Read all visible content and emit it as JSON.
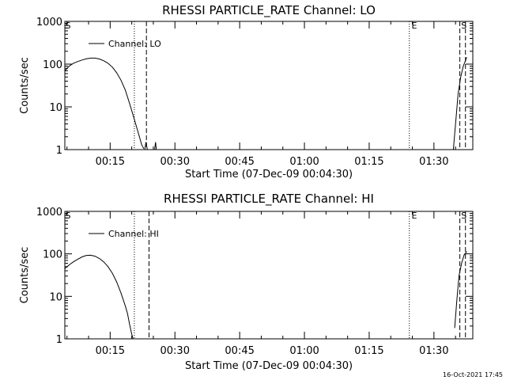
{
  "footer": {
    "timestamp": "16-Oct-2021 17:45"
  },
  "chart_data": [
    {
      "type": "line",
      "title": "RHESSI PARTICLE_RATE Channel: LO",
      "xlabel": "Start Time (07-Dec-09 00:04:30)",
      "ylabel": "Counts/sec",
      "y_scale": "log",
      "ylim": [
        1,
        1000
      ],
      "xlim_minutes": [
        4.5,
        99
      ],
      "y_ticks": [
        "1",
        "10",
        "100",
        "1000"
      ],
      "x_ticks": [
        {
          "at": 15,
          "label": "00:15"
        },
        {
          "at": 30,
          "label": "00:30"
        },
        {
          "at": 45,
          "label": "00:45"
        },
        {
          "at": 60,
          "label": "01:00"
        },
        {
          "at": 75,
          "label": "01:15"
        },
        {
          "at": 90,
          "label": "01:30"
        }
      ],
      "legend": {
        "position": "top-left",
        "entries": [
          "Channel: LO"
        ]
      },
      "markers": [
        {
          "at": 20.6,
          "style": "dotted",
          "label": ""
        },
        {
          "at": 23.4,
          "style": "dashed",
          "label": ""
        },
        {
          "at": 84.3,
          "style": "dotted",
          "label": ""
        },
        {
          "at": 96.0,
          "style": "dashed",
          "label": ""
        },
        {
          "at": 97.3,
          "style": "dashed",
          "label": ""
        }
      ],
      "edge_marks": [
        {
          "at": 4.6,
          "label": "S"
        },
        {
          "at": 84.8,
          "label": "E"
        },
        {
          "at": 96.3,
          "label": "S"
        }
      ],
      "series": [
        {
          "name": "Channel: LO",
          "segments": [
            [
              [
                4.5,
                70
              ],
              [
                5.5,
                90
              ],
              [
                6.5,
                105
              ],
              [
                7.5,
                115
              ],
              [
                8.5,
                125
              ],
              [
                9.5,
                133
              ],
              [
                10.5,
                138
              ],
              [
                11.5,
                138
              ],
              [
                12.5,
                132
              ],
              [
                13.5,
                120
              ],
              [
                14.5,
                105
              ],
              [
                15.5,
                85
              ],
              [
                16.5,
                63
              ],
              [
                17.5,
                42
              ],
              [
                18.5,
                25
              ],
              [
                19.5,
                12
              ],
              [
                20.5,
                5.5
              ],
              [
                21.5,
                2.5
              ],
              [
                22.3,
                1.3
              ],
              [
                22.8,
                1.05
              ]
            ],
            [
              [
                23.0,
                1.0
              ],
              [
                23.3,
                1.5
              ],
              [
                23.6,
                1.0
              ]
            ],
            [
              [
                25.3,
                1.0
              ],
              [
                25.5,
                1.5
              ],
              [
                25.7,
                1.0
              ]
            ],
            [
              [
                94.5,
                1.0
              ],
              [
                95.0,
                4
              ],
              [
                95.6,
                20
              ],
              [
                96.2,
                50
              ],
              [
                96.8,
                90
              ],
              [
                97.6,
                145
              ]
            ]
          ]
        }
      ]
    },
    {
      "type": "line",
      "title": "RHESSI PARTICLE_RATE Channel: HI",
      "xlabel": "Start Time (07-Dec-09 00:04:30)",
      "ylabel": "Counts/sec",
      "y_scale": "log",
      "ylim": [
        1,
        1000
      ],
      "xlim_minutes": [
        4.5,
        99
      ],
      "y_ticks": [
        "1",
        "10",
        "100",
        "1000"
      ],
      "x_ticks": [
        {
          "at": 15,
          "label": "00:15"
        },
        {
          "at": 30,
          "label": "00:30"
        },
        {
          "at": 45,
          "label": "00:45"
        },
        {
          "at": 60,
          "label": "01:00"
        },
        {
          "at": 75,
          "label": "01:15"
        },
        {
          "at": 90,
          "label": "01:30"
        }
      ],
      "legend": {
        "position": "top-left",
        "entries": [
          "Channel: HI"
        ]
      },
      "markers": [
        {
          "at": 20.6,
          "style": "dotted",
          "label": ""
        },
        {
          "at": 24.0,
          "style": "dashed",
          "label": ""
        },
        {
          "at": 84.3,
          "style": "dotted",
          "label": ""
        },
        {
          "at": 96.0,
          "style": "dashed",
          "label": ""
        },
        {
          "at": 97.3,
          "style": "dashed",
          "label": ""
        }
      ],
      "edge_marks": [
        {
          "at": 4.6,
          "label": "S"
        },
        {
          "at": 84.8,
          "label": "E"
        },
        {
          "at": 96.3,
          "label": "S"
        }
      ],
      "series": [
        {
          "name": "Channel: HI",
          "segments": [
            [
              [
                4.5,
                45
              ],
              [
                5.5,
                55
              ],
              [
                6.5,
                65
              ],
              [
                7.5,
                75
              ],
              [
                8.5,
                85
              ],
              [
                9.5,
                92
              ],
              [
                10.5,
                93
              ],
              [
                11.5,
                88
              ],
              [
                12.5,
                78
              ],
              [
                13.5,
                65
              ],
              [
                14.5,
                50
              ],
              [
                15.5,
                35
              ],
              [
                16.5,
                22
              ],
              [
                17.5,
                12
              ],
              [
                18.5,
                6
              ],
              [
                19.0,
                4
              ],
              [
                19.5,
                2.2
              ],
              [
                20.0,
                1.3
              ],
              [
                20.3,
                1.0
              ]
            ],
            [
              [
                94.8,
                1.8
              ],
              [
                95.3,
                8
              ],
              [
                95.8,
                30
              ],
              [
                96.4,
                60
              ],
              [
                97.0,
                95
              ],
              [
                97.6,
                115
              ]
            ]
          ]
        }
      ]
    }
  ]
}
